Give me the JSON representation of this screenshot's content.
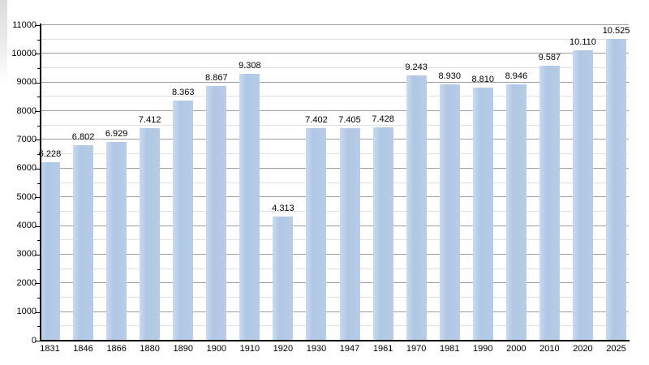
{
  "chart_data": {
    "type": "bar",
    "title": "",
    "xlabel": "",
    "ylabel": "",
    "categories": [
      "1831",
      "1846",
      "1866",
      "1880",
      "1890",
      "1900",
      "1910",
      "1920",
      "1930",
      "1947",
      "1961",
      "1970",
      "1981",
      "1990",
      "2000",
      "2010",
      "2020",
      "2025"
    ],
    "values": [
      6228,
      6802,
      6929,
      7412,
      8363,
      8867,
      9308,
      4313,
      7402,
      7405,
      7428,
      9243,
      8930,
      8810,
      8946,
      9587,
      10110,
      10525
    ],
    "value_labels": [
      "6.228",
      "6.802",
      "6.929",
      "7.412",
      "8.363",
      "8.867",
      "9.308",
      "4.313",
      "7.402",
      "7.405",
      "7.428",
      "9.243",
      "8.930",
      "8.810",
      "8.946",
      "9.587",
      "10.110",
      "10.525"
    ],
    "ylim": [
      0,
      11000
    ],
    "y_major_step": 1000,
    "y_minor_step": 500,
    "y_tick_labels": [
      "0",
      "1000",
      "2000",
      "3000",
      "4000",
      "5000",
      "6000",
      "7000",
      "8000",
      "9000",
      "10000",
      "11000"
    ],
    "grid": "major and minor horizontal gridlines",
    "legend_position": "none",
    "colors": {
      "bar_fill": "#b3c9e5",
      "bar_fill_highlight": "#c9daee",
      "grid_major": "#9f9f9f",
      "grid_minor": "#e0e0e0",
      "axis": "#000000",
      "text": "#000000",
      "background": "#ffffff"
    }
  }
}
